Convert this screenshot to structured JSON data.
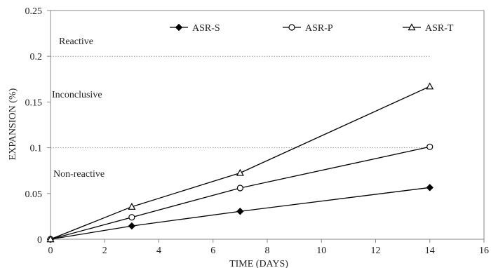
{
  "chart_data": {
    "type": "line",
    "title": "",
    "xlabel": "TIME (DAYS)",
    "ylabel": "EXPANSION (%)",
    "xlim": [
      0,
      16
    ],
    "ylim": [
      0,
      0.25
    ],
    "x_ticks": [
      "0",
      "2",
      "4",
      "6",
      "8",
      "10",
      "12",
      "14",
      "16"
    ],
    "y_ticks": [
      "0",
      "0.05",
      "0.1",
      "0.15",
      "0.2",
      "0.25"
    ],
    "x_tick_values": [
      0,
      2,
      4,
      6,
      8,
      10,
      12,
      14,
      16
    ],
    "y_tick_values": [
      0,
      0.05,
      0.1,
      0.15,
      0.2,
      0.25
    ],
    "x": [
      0,
      3,
      7,
      14
    ],
    "series": [
      {
        "name": "ASR-S",
        "marker": "diamond-filled",
        "values": [
          0,
          0.0145,
          0.0305,
          0.0565
        ]
      },
      {
        "name": "ASR-P",
        "marker": "circle-open",
        "values": [
          0,
          0.024,
          0.056,
          0.101
        ]
      },
      {
        "name": "ASR-T",
        "marker": "triangle-open",
        "values": [
          0,
          0.0355,
          0.0725,
          0.167
        ]
      }
    ],
    "threshold_lines": [
      {
        "y": 0.2,
        "style": "dotted",
        "x_range": [
          0,
          14
        ]
      },
      {
        "y": 0.1,
        "style": "dotted",
        "x_range": [
          0,
          14
        ]
      }
    ],
    "annotations": [
      {
        "text": "Reactive"
      },
      {
        "text": "Inconclusive"
      },
      {
        "text": "Non-reactive"
      }
    ],
    "grid": false,
    "legend_position": "top",
    "colors": {
      "line": "#000000",
      "threshold": "#999999",
      "axis": "#888888"
    }
  }
}
